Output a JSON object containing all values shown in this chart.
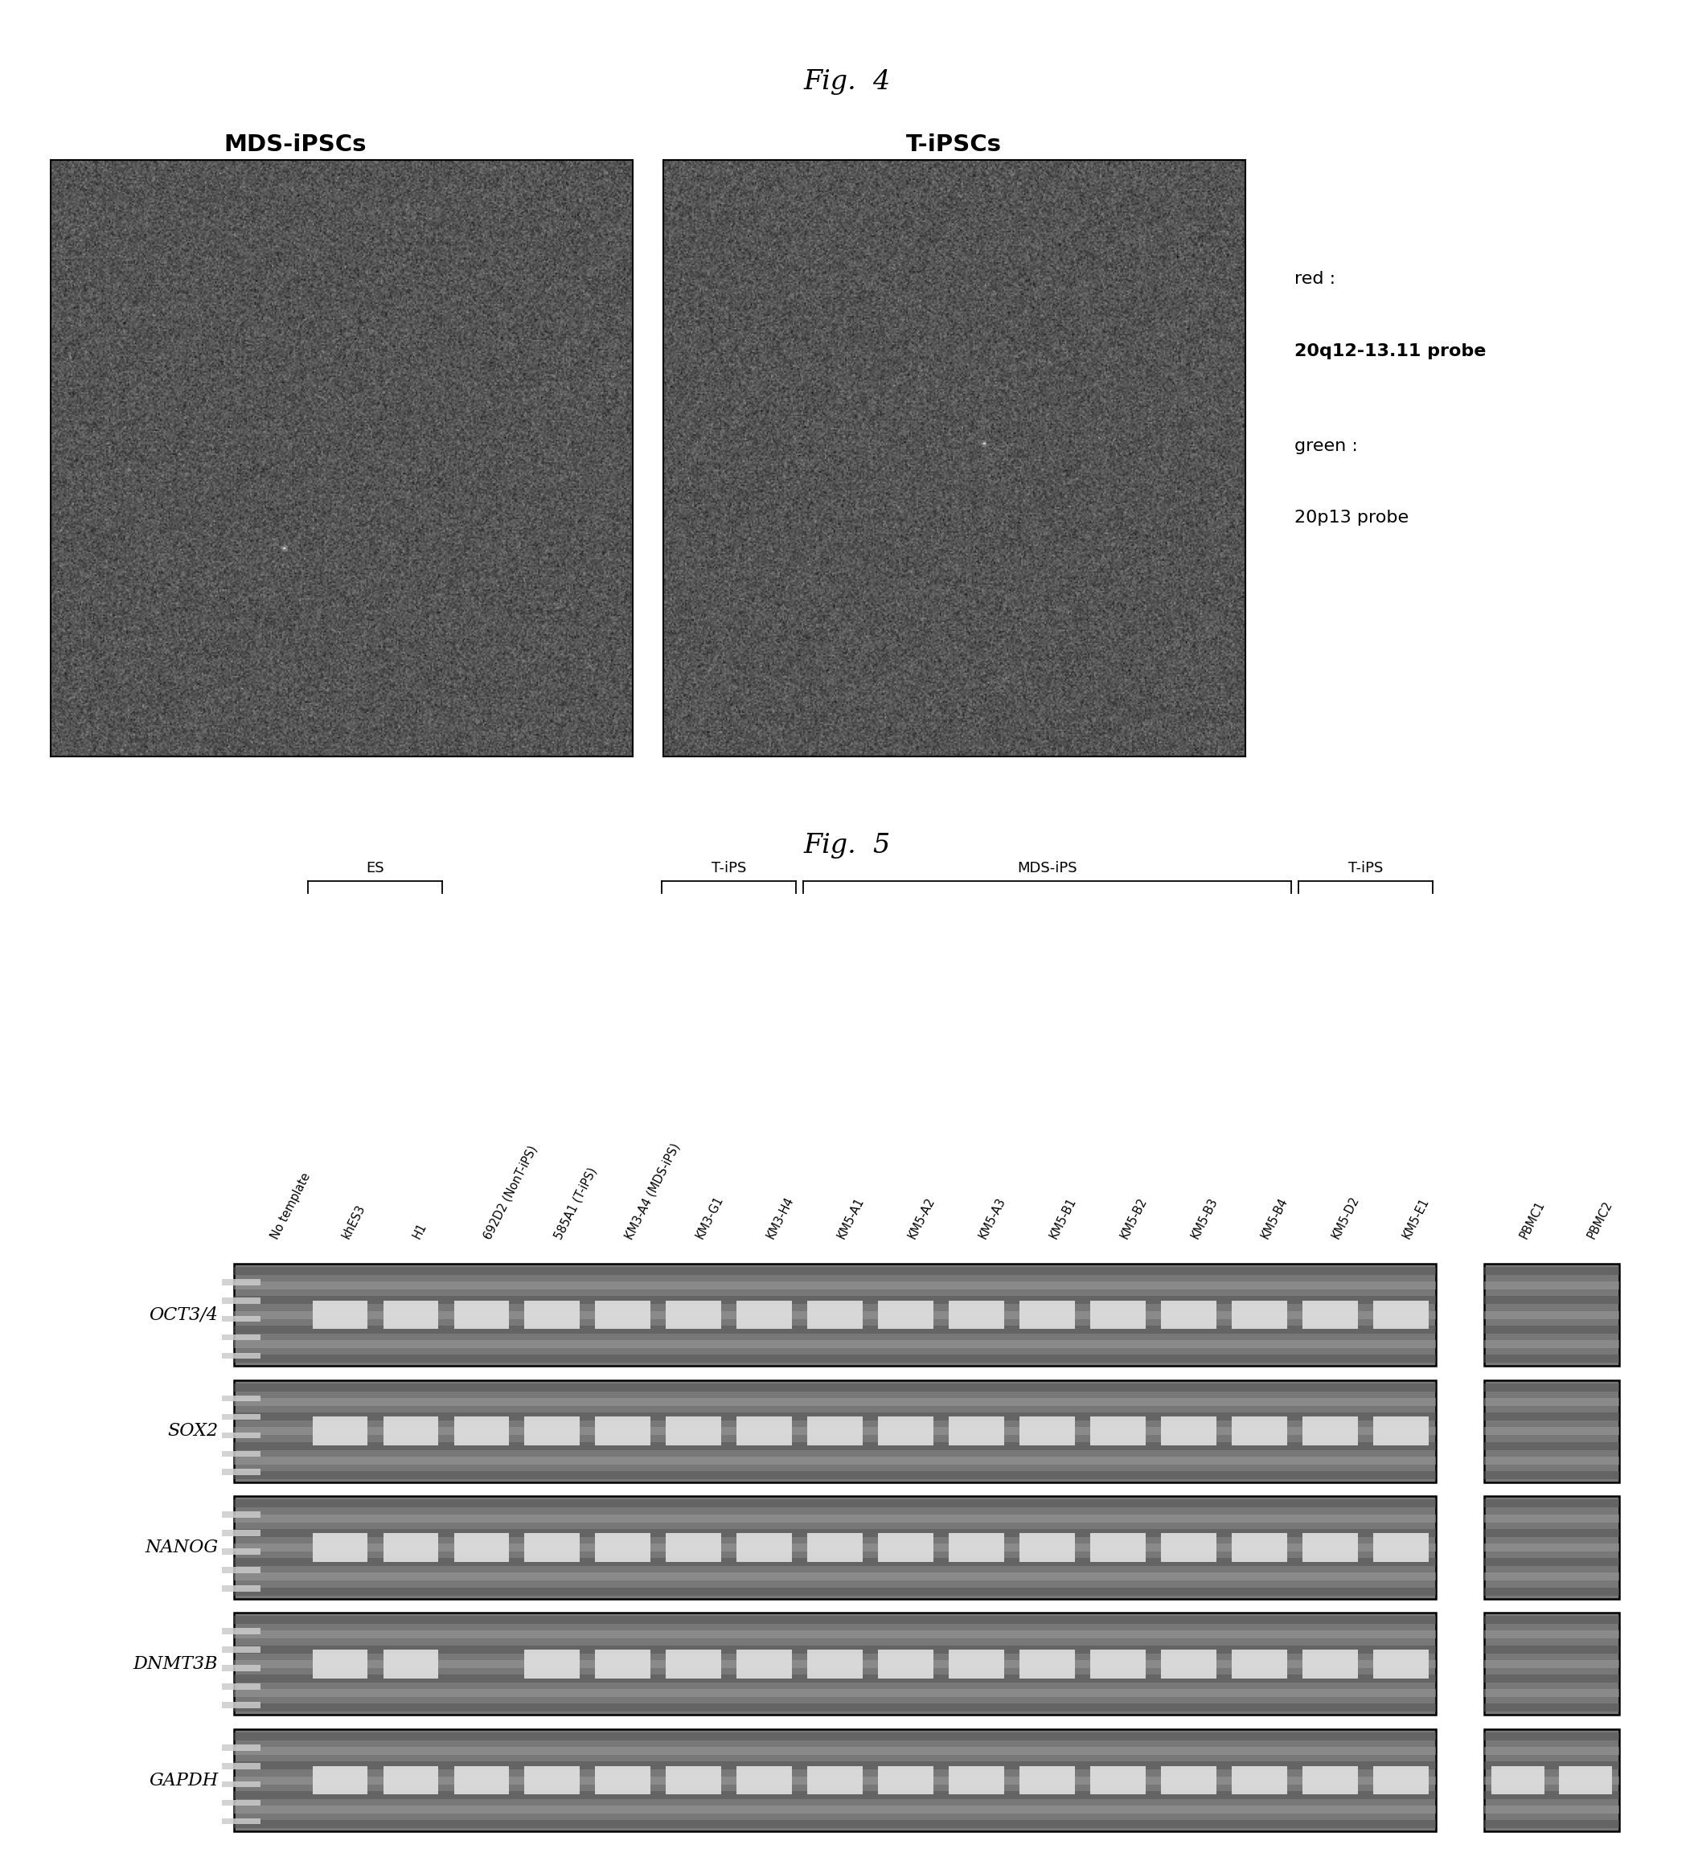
{
  "fig4_title": "Fig.  4",
  "fig5_title": "Fig.  5",
  "mds_label": "MDS-iPSCs",
  "tipsc_label": "T-iPSCs",
  "legend_lines": [
    "red :",
    "20q12-13.11 probe",
    "green :",
    "20p13 probe"
  ],
  "legend_bold": [
    false,
    true,
    false,
    false
  ],
  "gel_genes": [
    "OCT3/4",
    "SOX2",
    "NANOG",
    "DNMT3B",
    "GAPDH"
  ],
  "col_labels": [
    "No template",
    "khES3",
    "H1",
    "692D2 (NonT-iPS)",
    "585A1 (T-iPS)",
    "KM3-A4 (MDS-iPS)",
    "KM3-G1",
    "KM3-H4",
    "KM5-A1",
    "KM5-A2",
    "KM5-A3",
    "KM5-B1",
    "KM5-B2",
    "KM5-B3",
    "KM5-B4",
    "KM5-D2",
    "KM5-E1",
    "PBMC1",
    "PBMC2"
  ],
  "group_defs": [
    {
      "label": "ES",
      "c1": 1,
      "c2": 2
    },
    {
      "label": "T-iPS",
      "c1": 6,
      "c2": 7
    },
    {
      "label": "MDS-iPS",
      "c1": 8,
      "c2": 14
    },
    {
      "label": "T-iPS",
      "c1": 15,
      "c2": 16
    }
  ],
  "band_patterns": {
    "OCT3/4": [
      false,
      true,
      true,
      true,
      true,
      true,
      true,
      true,
      true,
      true,
      true,
      true,
      true,
      true,
      true,
      true,
      true,
      false,
      false
    ],
    "SOX2": [
      false,
      true,
      true,
      true,
      true,
      true,
      true,
      true,
      true,
      true,
      true,
      true,
      true,
      true,
      true,
      true,
      true,
      false,
      false
    ],
    "NANOG": [
      false,
      true,
      true,
      true,
      true,
      true,
      true,
      true,
      true,
      true,
      true,
      true,
      true,
      true,
      true,
      true,
      true,
      false,
      false
    ],
    "DNMT3B": [
      false,
      true,
      true,
      false,
      true,
      true,
      true,
      true,
      true,
      true,
      true,
      true,
      true,
      true,
      true,
      true,
      true,
      false,
      false
    ],
    "GAPDH": [
      false,
      true,
      true,
      true,
      true,
      true,
      true,
      true,
      true,
      true,
      true,
      true,
      true,
      true,
      true,
      true,
      true,
      true,
      true
    ]
  },
  "page_bg": "#ffffff",
  "gel_bg_color": "#787878",
  "gel_dark_stripe": "#555555",
  "gel_light_stripe": "#999999",
  "band_fill": "#e0e0e0",
  "ladder_fill": "#cccccc"
}
